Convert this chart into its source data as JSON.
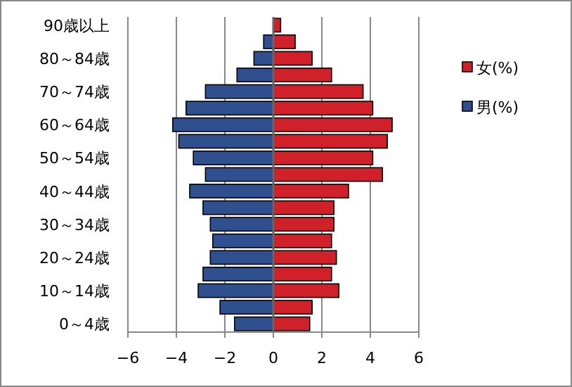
{
  "chart_data": {
    "type": "bar",
    "orientation": "horizontal",
    "stacked": true,
    "categories": [
      "90歳以上",
      null,
      "80～84歳",
      null,
      "70～74歳",
      null,
      "60～64歳",
      null,
      "50～54歳",
      null,
      "40～44歳",
      null,
      "30～34歳",
      null,
      "20～24歳",
      null,
      "10～14歳",
      null,
      "0～4歳"
    ],
    "series": [
      {
        "name": "男(%)",
        "color": "#2f4f8f",
        "values": [
          0,
          -0.4,
          -0.8,
          -1.5,
          -2.8,
          -3.6,
          -4.15,
          -3.9,
          -3.3,
          -2.8,
          -3.45,
          -2.9,
          -2.6,
          -2.5,
          -2.6,
          -2.9,
          -3.1,
          -2.2,
          -1.6
        ]
      },
      {
        "name": "女(%)",
        "color": "#d0202a",
        "values": [
          0.3,
          0.9,
          1.6,
          2.4,
          3.7,
          4.1,
          4.9,
          4.7,
          4.1,
          4.5,
          3.1,
          2.5,
          2.5,
          2.4,
          2.6,
          2.4,
          2.7,
          1.6,
          1.5
        ]
      }
    ],
    "xlim": [
      -6,
      6
    ],
    "xticks": [
      -6,
      -4,
      -2,
      0,
      2,
      4,
      6
    ],
    "grid": "x",
    "legend": "right"
  }
}
